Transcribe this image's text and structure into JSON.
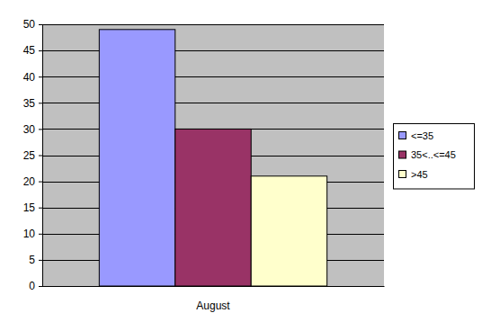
{
  "chart_data": {
    "type": "bar",
    "categories": [
      "August"
    ],
    "series": [
      {
        "name": "<=35",
        "color": "#9999ff",
        "values": [
          49
        ]
      },
      {
        "name": "35<..<=45",
        "color": "#993366",
        "values": [
          30
        ]
      },
      {
        "name": ">45",
        "color": "#ffffcc",
        "values": [
          21
        ]
      }
    ],
    "ylim": [
      0,
      50
    ],
    "yticks": [
      0,
      5,
      10,
      15,
      20,
      25,
      30,
      35,
      40,
      45,
      50
    ],
    "grid": true,
    "legend": "right"
  }
}
